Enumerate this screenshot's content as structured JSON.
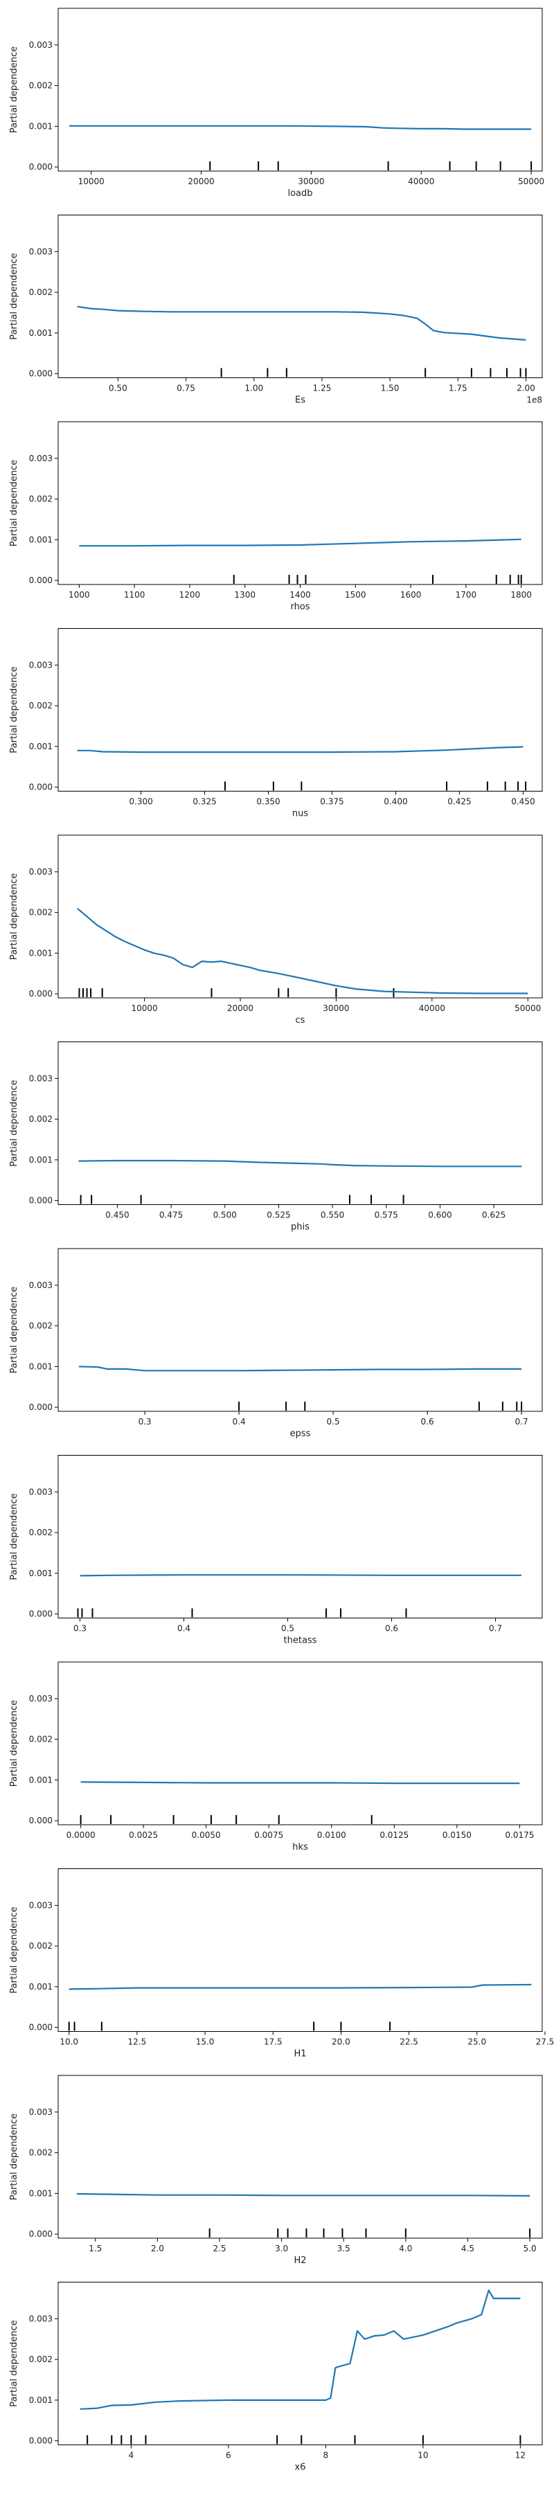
{
  "figure": {
    "line_color": "#1f77b4",
    "background": "#ffffff"
  },
  "chart_data": [
    {
      "type": "line",
      "xlabel": "loadb",
      "ylabel": "Partial dependence",
      "xlim": [
        7000,
        51000
      ],
      "ylim": [
        -0.0001,
        0.0039
      ],
      "xticks": [
        10000,
        20000,
        30000,
        40000,
        50000
      ],
      "xtick_labels": [
        "10000",
        "20000",
        "30000",
        "40000",
        "50000"
      ],
      "yticks": [
        0,
        0.001,
        0.002,
        0.003
      ],
      "ytick_labels": [
        "0.000",
        "0.001",
        "0.002",
        "0.003"
      ],
      "offset_label": "",
      "x": [
        8000,
        12000,
        16000,
        20000,
        24000,
        28000,
        32000,
        35000,
        36500,
        38000,
        40000,
        42000,
        44000,
        46000,
        48000,
        50000
      ],
      "y": [
        0.00101,
        0.00101,
        0.00101,
        0.00101,
        0.00101,
        0.00101,
        0.001,
        0.00099,
        0.00096,
        0.00095,
        0.00094,
        0.00094,
        0.00093,
        0.00093,
        0.00093,
        0.00093
      ],
      "deciles": [
        20800,
        25200,
        27000,
        37000,
        42600,
        45000,
        47200,
        50000
      ]
    },
    {
      "type": "line",
      "xlabel": "Es",
      "ylabel": "Partial dependence",
      "xlim": [
        0.28,
        2.06
      ],
      "ylim": [
        -0.0001,
        0.0039
      ],
      "xticks": [
        0.5,
        0.75,
        1.0,
        1.25,
        1.5,
        1.75,
        2.0
      ],
      "xtick_labels": [
        "0.50",
        "0.75",
        "1.00",
        "1.25",
        "1.50",
        "1.75",
        "2.00"
      ],
      "yticks": [
        0,
        0.001,
        0.002,
        0.003
      ],
      "ytick_labels": [
        "0.000",
        "0.001",
        "0.002",
        "0.003"
      ],
      "offset_label": "1e8",
      "x": [
        0.35,
        0.4,
        0.45,
        0.5,
        0.6,
        0.7,
        0.8,
        0.9,
        1.0,
        1.1,
        1.2,
        1.3,
        1.4,
        1.5,
        1.55,
        1.6,
        1.63,
        1.66,
        1.7,
        1.8,
        1.9,
        2.0
      ],
      "y": [
        0.00165,
        0.0016,
        0.00158,
        0.00155,
        0.00153,
        0.00152,
        0.00152,
        0.00152,
        0.00152,
        0.00152,
        0.00152,
        0.00152,
        0.00151,
        0.00147,
        0.00143,
        0.00136,
        0.00122,
        0.00106,
        0.00101,
        0.00097,
        0.00088,
        0.00083
      ],
      "deciles": [
        0.88,
        1.05,
        1.12,
        1.63,
        1.8,
        1.87,
        1.93,
        1.98,
        2.0
      ]
    },
    {
      "type": "line",
      "xlabel": "rhos",
      "ylabel": "Partial dependence",
      "xlim": [
        962,
        1838
      ],
      "ylim": [
        -0.0001,
        0.0039
      ],
      "xticks": [
        1000,
        1100,
        1200,
        1300,
        1400,
        1500,
        1600,
        1700,
        1800
      ],
      "xtick_labels": [
        "1000",
        "1100",
        "1200",
        "1300",
        "1400",
        "1500",
        "1600",
        "1700",
        "1800"
      ],
      "yticks": [
        0,
        0.001,
        0.002,
        0.003
      ],
      "ytick_labels": [
        "0.000",
        "0.001",
        "0.002",
        "0.003"
      ],
      "offset_label": "",
      "x": [
        1000,
        1100,
        1200,
        1300,
        1400,
        1450,
        1500,
        1550,
        1600,
        1650,
        1700,
        1750,
        1800
      ],
      "y": [
        0.00085,
        0.00085,
        0.00086,
        0.00086,
        0.00087,
        0.00089,
        0.00091,
        0.00093,
        0.00095,
        0.00096,
        0.00097,
        0.00099,
        0.00101
      ],
      "deciles": [
        1280,
        1380,
        1395,
        1410,
        1640,
        1755,
        1780,
        1795,
        1800
      ]
    },
    {
      "type": "line",
      "xlabel": "nus",
      "ylabel": "Partial dependence",
      "xlim": [
        0.2675,
        0.4575
      ],
      "ylim": [
        -0.0001,
        0.0039
      ],
      "xticks": [
        0.3,
        0.325,
        0.35,
        0.375,
        0.4,
        0.425,
        0.45
      ],
      "xtick_labels": [
        "0.300",
        "0.325",
        "0.350",
        "0.375",
        "0.400",
        "0.425",
        "0.450"
      ],
      "yticks": [
        0,
        0.001,
        0.002,
        0.003
      ],
      "ytick_labels": [
        "0.000",
        "0.001",
        "0.002",
        "0.003"
      ],
      "offset_label": "",
      "x": [
        0.275,
        0.28,
        0.285,
        0.3,
        0.325,
        0.35,
        0.375,
        0.4,
        0.41,
        0.42,
        0.43,
        0.44,
        0.45
      ],
      "y": [
        0.0009,
        0.0009,
        0.00087,
        0.00086,
        0.00086,
        0.00086,
        0.00086,
        0.00087,
        0.00089,
        0.00091,
        0.00094,
        0.00097,
        0.00099
      ],
      "deciles": [
        0.333,
        0.352,
        0.363,
        0.42,
        0.436,
        0.443,
        0.448,
        0.451
      ]
    },
    {
      "type": "line",
      "xlabel": "cs",
      "ylabel": "Partial dependence",
      "xlim": [
        1000,
        51500
      ],
      "ylim": [
        -0.0001,
        0.0039
      ],
      "xticks": [
        10000,
        20000,
        30000,
        40000,
        50000
      ],
      "xtick_labels": [
        "10000",
        "20000",
        "30000",
        "40000",
        "50000"
      ],
      "yticks": [
        0,
        0.001,
        0.002,
        0.003
      ],
      "ytick_labels": [
        "0.000",
        "0.001",
        "0.002",
        "0.003"
      ],
      "offset_label": "",
      "x": [
        3000,
        4000,
        5000,
        6000,
        7000,
        8000,
        9000,
        10000,
        11000,
        12000,
        13000,
        14000,
        15000,
        16000,
        17000,
        18000,
        19000,
        20000,
        21000,
        22000,
        24000,
        26000,
        28000,
        30000,
        32000,
        35000,
        38000,
        41000,
        45000,
        50000
      ],
      "y": [
        0.0021,
        0.0019,
        0.0017,
        0.00155,
        0.0014,
        0.00128,
        0.00118,
        0.00108,
        0.001,
        0.00095,
        0.00088,
        0.00072,
        0.00065,
        0.0008,
        0.00078,
        0.0008,
        0.00075,
        0.0007,
        0.00065,
        0.00058,
        0.0005,
        0.0004,
        0.0003,
        0.0002,
        0.00012,
        6e-05,
        4e-05,
        2e-05,
        1e-05,
        1e-05
      ],
      "deciles": [
        3200,
        3600,
        4000,
        4400,
        5600,
        17000,
        24000,
        25000,
        30000,
        36000
      ]
    },
    {
      "type": "line",
      "xlabel": "phis",
      "ylabel": "Partial dependence",
      "xlim": [
        0.4225,
        0.6475
      ],
      "ylim": [
        -0.0001,
        0.0039
      ],
      "xticks": [
        0.45,
        0.475,
        0.5,
        0.525,
        0.55,
        0.575,
        0.6,
        0.625
      ],
      "xtick_labels": [
        "0.450",
        "0.475",
        "0.500",
        "0.525",
        "0.550",
        "0.575",
        "0.600",
        "0.625"
      ],
      "yticks": [
        0,
        0.001,
        0.002,
        0.003
      ],
      "ytick_labels": [
        "0.000",
        "0.001",
        "0.002",
        "0.003"
      ],
      "offset_label": "",
      "x": [
        0.432,
        0.45,
        0.475,
        0.5,
        0.515,
        0.53,
        0.545,
        0.55,
        0.56,
        0.575,
        0.6,
        0.625,
        0.638
      ],
      "y": [
        0.00097,
        0.00098,
        0.00098,
        0.00097,
        0.00094,
        0.00092,
        0.0009,
        0.00088,
        0.00086,
        0.00085,
        0.00084,
        0.00084,
        0.00084
      ],
      "deciles": [
        0.433,
        0.438,
        0.461,
        0.558,
        0.568,
        0.583
      ]
    },
    {
      "type": "line",
      "xlabel": "epss",
      "ylabel": "Partial dependence",
      "xlim": [
        0.208,
        0.722
      ],
      "ylim": [
        -0.0001,
        0.0039
      ],
      "xticks": [
        0.3,
        0.4,
        0.5,
        0.6,
        0.7
      ],
      "xtick_labels": [
        "0.3",
        "0.4",
        "0.5",
        "0.6",
        "0.7"
      ],
      "yticks": [
        0,
        0.001,
        0.002,
        0.003
      ],
      "ytick_labels": [
        "0.000",
        "0.001",
        "0.002",
        "0.003"
      ],
      "offset_label": "",
      "x": [
        0.23,
        0.25,
        0.26,
        0.28,
        0.3,
        0.35,
        0.4,
        0.45,
        0.5,
        0.55,
        0.6,
        0.65,
        0.7
      ],
      "y": [
        0.001,
        0.00099,
        0.00094,
        0.00094,
        0.0009,
        0.0009,
        0.0009,
        0.00091,
        0.00092,
        0.00093,
        0.00093,
        0.00094,
        0.00094
      ],
      "deciles": [
        0.4,
        0.45,
        0.47,
        0.655,
        0.68,
        0.695,
        0.7
      ]
    },
    {
      "type": "line",
      "xlabel": "thetass",
      "ylabel": "Partial dependence",
      "xlim": [
        0.279,
        0.745
      ],
      "ylim": [
        -0.0001,
        0.0039
      ],
      "xticks": [
        0.3,
        0.4,
        0.5,
        0.6,
        0.7
      ],
      "xtick_labels": [
        "0.3",
        "0.4",
        "0.5",
        "0.6",
        "0.7"
      ],
      "yticks": [
        0,
        0.001,
        0.002,
        0.003
      ],
      "ytick_labels": [
        "0.000",
        "0.001",
        "0.002",
        "0.003"
      ],
      "offset_label": "",
      "x": [
        0.3,
        0.33,
        0.4,
        0.5,
        0.6,
        0.7,
        0.725
      ],
      "y": [
        0.00094,
        0.00095,
        0.00096,
        0.00096,
        0.00095,
        0.00095,
        0.00095
      ],
      "deciles": [
        0.298,
        0.302,
        0.312,
        0.408,
        0.537,
        0.551,
        0.614
      ]
    },
    {
      "type": "line",
      "xlabel": "hks",
      "ylabel": "Partial dependence",
      "xlim": [
        -0.0009,
        0.0184
      ],
      "ylim": [
        -0.0001,
        0.0039
      ],
      "xticks": [
        0,
        0.0025,
        0.005,
        0.0075,
        0.01,
        0.0125,
        0.015,
        0.0175
      ],
      "xtick_labels": [
        "0.0000",
        "0.0025",
        "0.0050",
        "0.0075",
        "0.0100",
        "0.0125",
        "0.0150",
        "0.0175"
      ],
      "yticks": [
        0,
        0.001,
        0.002,
        0.003
      ],
      "ytick_labels": [
        "0.000",
        "0.001",
        "0.002",
        "0.003"
      ],
      "offset_label": "",
      "x": [
        0,
        0.0025,
        0.005,
        0.0075,
        0.01,
        0.0125,
        0.015,
        0.0175
      ],
      "y": [
        0.00095,
        0.00094,
        0.00093,
        0.00093,
        0.00093,
        0.00092,
        0.00092,
        0.00092
      ],
      "deciles": [
        0,
        0.0012,
        0.0037,
        0.0052,
        0.0062,
        0.0079,
        0.0116
      ]
    },
    {
      "type": "line",
      "xlabel": "H1",
      "ylabel": "Partial dependence",
      "xlim": [
        9.6,
        27.4
      ],
      "ylim": [
        -0.0001,
        0.0039
      ],
      "xticks": [
        10,
        12.5,
        15,
        17.5,
        20,
        22.5,
        25,
        27.5
      ],
      "xtick_labels": [
        "10.0",
        "12.5",
        "15.0",
        "17.5",
        "20.0",
        "22.5",
        "25.0",
        "27.5"
      ],
      "yticks": [
        0,
        0.001,
        0.002,
        0.003
      ],
      "ytick_labels": [
        "0.000",
        "0.001",
        "0.002",
        "0.003"
      ],
      "offset_label": "",
      "x": [
        10,
        11,
        12.5,
        15,
        17.5,
        20,
        22.5,
        24.8,
        25.2,
        27
      ],
      "y": [
        0.00094,
        0.00095,
        0.00097,
        0.00097,
        0.00097,
        0.00097,
        0.00098,
        0.00099,
        0.00104,
        0.00105
      ],
      "deciles": [
        10,
        10.2,
        11.2,
        19,
        20,
        21.8
      ]
    },
    {
      "type": "line",
      "xlabel": "H2",
      "ylabel": "Partial dependence",
      "xlim": [
        1.2,
        5.1
      ],
      "ylim": [
        -0.0001,
        0.0039
      ],
      "xticks": [
        1.5,
        2.0,
        2.5,
        3.0,
        3.5,
        4.0,
        4.5,
        5.0
      ],
      "xtick_labels": [
        "1.5",
        "2.0",
        "2.5",
        "3.0",
        "3.5",
        "4.0",
        "4.5",
        "5.0"
      ],
      "yticks": [
        0,
        0.001,
        0.002,
        0.003
      ],
      "ytick_labels": [
        "0.000",
        "0.001",
        "0.002",
        "0.003"
      ],
      "offset_label": "",
      "x": [
        1.35,
        1.6,
        2.0,
        2.5,
        3.0,
        3.5,
        4.0,
        4.5,
        5.0
      ],
      "y": [
        0.00099,
        0.00098,
        0.00096,
        0.00096,
        0.00095,
        0.00095,
        0.00095,
        0.00095,
        0.00094
      ],
      "deciles": [
        2.42,
        2.97,
        3.05,
        3.2,
        3.34,
        3.49,
        3.68,
        4.0,
        5.0
      ]
    },
    {
      "type": "line",
      "xlabel": "x6",
      "ylabel": "Partial dependence",
      "xlim": [
        2.5,
        12.45
      ],
      "ylim": [
        -0.0001,
        0.0039
      ],
      "xticks": [
        4,
        6,
        8,
        10,
        12
      ],
      "xtick_labels": [
        "4",
        "6",
        "8",
        "10",
        "12"
      ],
      "yticks": [
        0,
        0.001,
        0.002,
        0.003
      ],
      "ytick_labels": [
        "0.000",
        "0.001",
        "0.002",
        "0.003"
      ],
      "offset_label": "",
      "x": [
        2.95,
        3.3,
        3.6,
        4.0,
        4.5,
        5.0,
        6.0,
        7.0,
        8.0,
        8.1,
        8.2,
        8.5,
        8.65,
        8.8,
        9.0,
        9.2,
        9.4,
        9.5,
        9.6,
        10.0,
        10.5,
        10.7,
        11.0,
        11.2,
        11.35,
        11.45,
        11.6,
        12.0
      ],
      "y": [
        0.00078,
        0.0008,
        0.00087,
        0.00088,
        0.00095,
        0.00098,
        0.001,
        0.001,
        0.001,
        0.00105,
        0.0018,
        0.0019,
        0.0027,
        0.0025,
        0.00258,
        0.0026,
        0.0027,
        0.0026,
        0.0025,
        0.0026,
        0.0028,
        0.0029,
        0.003,
        0.0031,
        0.0037,
        0.0035,
        0.0035,
        0.0035
      ],
      "deciles": [
        3.1,
        3.6,
        3.8,
        4.0,
        4.3,
        7.0,
        7.5,
        8.6,
        10.0,
        12.0
      ]
    }
  ]
}
